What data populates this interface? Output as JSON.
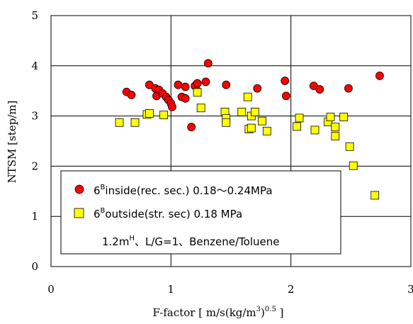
{
  "chart_data": {
    "type": "scatter",
    "title": "",
    "xlabel": "F-factor [ m/s(kg/m³)⁰·⁵ ]",
    "ylabel": "NTSM [step/m]",
    "xlim": [
      0,
      3
    ],
    "ylim": [
      0,
      5
    ],
    "x_ticks": [
      "0",
      "1",
      "2",
      "3"
    ],
    "y_ticks": [
      "0",
      "1",
      "2",
      "3",
      "4",
      "5"
    ],
    "grid": true,
    "legend_placement": "lower-left",
    "series": [
      {
        "name": "6Binside(rec. sec.) 0.18～0.24MPa",
        "marker": "circle",
        "color": "#ff0000",
        "points": [
          [
            0.63,
            3.48
          ],
          [
            0.67,
            3.42
          ],
          [
            0.82,
            3.62
          ],
          [
            0.87,
            3.55
          ],
          [
            0.88,
            3.4
          ],
          [
            0.9,
            3.52
          ],
          [
            0.93,
            3.45
          ],
          [
            0.96,
            3.38
          ],
          [
            0.98,
            3.32
          ],
          [
            1.0,
            3.25
          ],
          [
            1.01,
            3.18
          ],
          [
            1.06,
            3.62
          ],
          [
            1.09,
            3.38
          ],
          [
            1.12,
            3.58
          ],
          [
            1.12,
            3.35
          ],
          [
            1.17,
            2.78
          ],
          [
            1.2,
            3.6
          ],
          [
            1.22,
            3.5
          ],
          [
            1.22,
            3.65
          ],
          [
            1.29,
            3.68
          ],
          [
            1.31,
            4.05
          ],
          [
            1.46,
            3.62
          ],
          [
            1.72,
            3.55
          ],
          [
            1.95,
            3.7
          ],
          [
            1.96,
            3.4
          ],
          [
            2.19,
            3.6
          ],
          [
            2.24,
            3.53
          ],
          [
            2.48,
            3.55
          ],
          [
            2.74,
            3.8
          ]
        ]
      },
      {
        "name": "6Boutside(str. sec) 0.18 MPa",
        "marker": "square",
        "color": "#ffff00",
        "points": [
          [
            0.57,
            2.87
          ],
          [
            0.7,
            2.87
          ],
          [
            0.8,
            3.03
          ],
          [
            0.82,
            3.05
          ],
          [
            0.94,
            3.02
          ],
          [
            1.22,
            3.47
          ],
          [
            1.25,
            3.16
          ],
          [
            1.45,
            3.08
          ],
          [
            1.46,
            2.95
          ],
          [
            1.46,
            2.87
          ],
          [
            1.59,
            3.08
          ],
          [
            1.64,
            3.38
          ],
          [
            1.65,
            2.74
          ],
          [
            1.67,
            2.76
          ],
          [
            1.67,
            3.0
          ],
          [
            1.7,
            3.08
          ],
          [
            1.76,
            2.9
          ],
          [
            1.8,
            2.7
          ],
          [
            2.05,
            2.79
          ],
          [
            2.07,
            2.96
          ],
          [
            2.2,
            2.72
          ],
          [
            2.31,
            2.88
          ],
          [
            2.33,
            2.98
          ],
          [
            2.37,
            2.78
          ],
          [
            2.37,
            2.6
          ],
          [
            2.44,
            2.98
          ],
          [
            2.49,
            2.39
          ],
          [
            2.52,
            2.01
          ],
          [
            2.7,
            1.42
          ]
        ]
      }
    ],
    "legend": {
      "item1_base": "6",
      "item1_sup": "B",
      "item1_rest": "inside(rec. sec.) 0.18～0.24MPa",
      "item2_base": "6",
      "item2_sup": "B",
      "item2_rest": "outside(str. sec) 0.18 MPa",
      "note_base": "1.2m",
      "note_sup": "H",
      "note_rest": "、L/G=1、Benzene/Toluene"
    },
    "axis_labels": {
      "y": "NTSM [step/m]",
      "x_main": "F-factor [ m/s(kg/m",
      "x_sup1": "3",
      "x_mid": ")",
      "x_sup2": "0.5",
      "x_end": " ]"
    }
  }
}
